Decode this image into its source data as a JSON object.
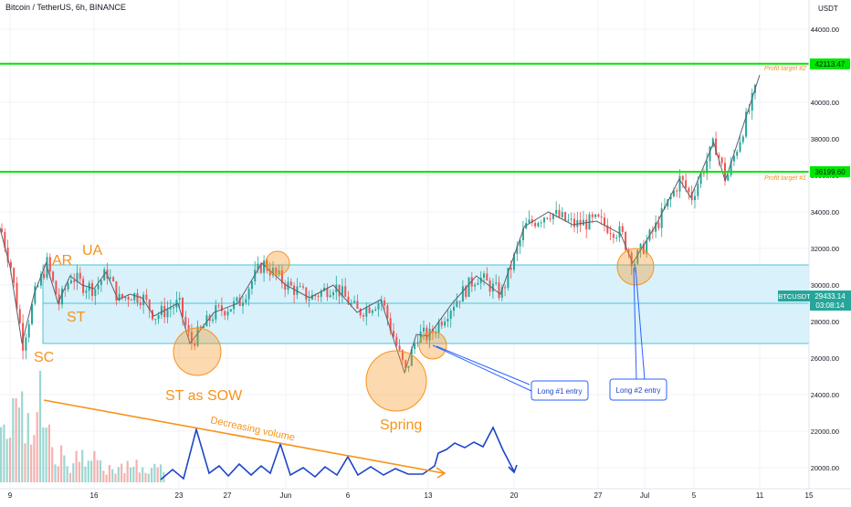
{
  "header": {
    "symbol_title": "Bitcoin / TetherUS, 6h, BINANCE"
  },
  "axis": {
    "currency": "USDT",
    "y_ticks": [
      "44000.00",
      "42000.00",
      "40000.00",
      "38000.00",
      "36000.00",
      "34000.00",
      "32000.00",
      "30000.00",
      "28000.00",
      "26000.00",
      "24000.00",
      "22000.00",
      "20000.00"
    ],
    "x_ticks": [
      "9",
      "16",
      "23",
      "27",
      "Jun",
      "6",
      "13",
      "20",
      "27",
      "Jul",
      "5",
      "11",
      "15"
    ]
  },
  "price_tags": {
    "target2_price": "42113.47",
    "target1_price": "36199.60",
    "current_symbol": "BTCUSDT",
    "current_price": "29433.14",
    "countdown": "03:08:14"
  },
  "annotations": {
    "ar": "AR",
    "ua": "UA",
    "st": "ST",
    "sc": "SC",
    "st_sow": "ST as SOW",
    "spring": "Spring",
    "volume_label": "Decreasing volume",
    "profit_target_1": "Profit target #1",
    "profit_target_2": "Profit target #2",
    "long1": "Long #1 entry",
    "long2": "Long #2 entry"
  },
  "colors": {
    "up": "#26a69a",
    "down": "#ef5350",
    "range_fill": "#d8f1fb",
    "range_border": "#4ec3d6",
    "target_line": "#00e600",
    "annotation_orange": "#f7931a",
    "wave_blue": "#1d46c7",
    "price_tag_bg": "#26a69a"
  },
  "chart_data": {
    "type": "candlestick",
    "title": "Bitcoin / TetherUS, 6h, BINANCE",
    "ylabel": "USDT",
    "ylim": [
      19500,
      45000
    ],
    "levels": {
      "profit_target_2": 42113.47,
      "profit_target_1": 36199.6,
      "current": 29433.14,
      "range_top": 31100,
      "range_bottom": 26800,
      "range_mid": 29000
    },
    "price_path": [
      [
        "May 7",
        35000
      ],
      [
        "May 8",
        33500
      ],
      [
        "May 9",
        31000
      ],
      [
        "May 10",
        26800
      ],
      [
        "May 11",
        29500
      ],
      [
        "May 12",
        31200
      ],
      [
        "May 13",
        29000
      ],
      [
        "May 14",
        30500
      ],
      [
        "May 15",
        30000
      ],
      [
        "May 16",
        29800
      ],
      [
        "May 17",
        30700
      ],
      [
        "May 18",
        29200
      ],
      [
        "May 19",
        29500
      ],
      [
        "May 20",
        29300
      ],
      [
        "May 21",
        28300
      ],
      [
        "May 23",
        29000
      ],
      [
        "May 24",
        26800
      ],
      [
        "May 26",
        28500
      ],
      [
        "May 28",
        29000
      ],
      [
        "May 30",
        31200
      ],
      [
        "Jun 1",
        30000
      ],
      [
        "Jun 3",
        29300
      ],
      [
        "Jun 5",
        30000
      ],
      [
        "Jun 7",
        28500
      ],
      [
        "Jun 9",
        29200
      ],
      [
        "Jun 10",
        27200
      ],
      [
        "Jun 11",
        25200
      ],
      [
        "Jun 12",
        27300
      ],
      [
        "Jun 13",
        27200
      ],
      [
        "Jun 15",
        29000
      ],
      [
        "Jun 17",
        30500
      ],
      [
        "Jun 19",
        29500
      ],
      [
        "Jun 21",
        33200
      ],
      [
        "Jun 23",
        34000
      ],
      [
        "Jun 25",
        33300
      ],
      [
        "Jun 27",
        33500
      ],
      [
        "Jun 29",
        32800
      ],
      [
        "Jun 30",
        31200
      ],
      [
        "Jul 2",
        33300
      ],
      [
        "Jul 4",
        35800
      ],
      [
        "Jul 5",
        34800
      ],
      [
        "Jul 7",
        37800
      ],
      [
        "Jul 8",
        35700
      ],
      [
        "Jul 11",
        41500
      ]
    ]
  }
}
